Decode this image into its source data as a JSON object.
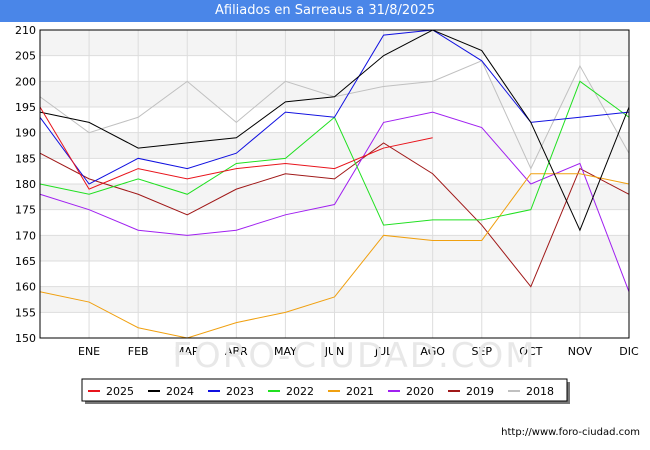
{
  "page": {
    "title": "Afiliados en Sarreaus a 31/8/2025",
    "footer": "http://www.foro-ciudad.com",
    "watermark": "FORO-CIUDAD.COM"
  },
  "chart_data": {
    "type": "line",
    "title": "Afiliados en Sarreaus a 31/8/2025",
    "xlabel": "",
    "ylabel": "",
    "categories": [
      "",
      "ENE",
      "FEB",
      "MAR",
      "ABR",
      "MAY",
      "JUN",
      "JUL",
      "AGO",
      "SEP",
      "OCT",
      "NOV",
      "DIC"
    ],
    "ylim": [
      150,
      210
    ],
    "yticks": [
      150,
      155,
      160,
      165,
      170,
      175,
      180,
      185,
      190,
      195,
      200,
      205,
      210
    ],
    "grid": true,
    "legend_position": "bottom",
    "series": [
      {
        "name": "2025",
        "color": "#e8141c",
        "values": [
          195,
          179,
          183,
          181,
          183,
          184,
          183,
          187,
          189,
          null,
          null,
          null,
          null
        ]
      },
      {
        "name": "2024",
        "color": "#000000",
        "values": [
          194,
          192,
          187,
          188,
          189,
          196,
          197,
          205,
          210,
          206,
          192,
          171,
          195
        ]
      },
      {
        "name": "2023",
        "color": "#1010e0",
        "values": [
          193,
          180,
          185,
          183,
          186,
          194,
          193,
          209,
          210,
          204,
          192,
          193,
          194
        ]
      },
      {
        "name": "2022",
        "color": "#20e020",
        "values": [
          180,
          178,
          181,
          178,
          184,
          185,
          193,
          172,
          173,
          173,
          175,
          200,
          193
        ]
      },
      {
        "name": "2021",
        "color": "#f0a010",
        "values": [
          159,
          157,
          152,
          150,
          153,
          155,
          158,
          170,
          169,
          169,
          182,
          182,
          180
        ]
      },
      {
        "name": "2020",
        "color": "#a020f0",
        "values": [
          178,
          175,
          171,
          170,
          171,
          174,
          176,
          192,
          194,
          191,
          180,
          184,
          159
        ]
      },
      {
        "name": "2019",
        "color": "#a01818",
        "values": [
          186,
          181,
          178,
          174,
          179,
          182,
          181,
          188,
          182,
          172,
          160,
          183,
          178
        ]
      },
      {
        "name": "2018",
        "color": "#c0c0c0",
        "values": [
          197,
          190,
          193,
          200,
          192,
          200,
          197,
          199,
          200,
          204,
          183,
          203,
          186
        ]
      }
    ]
  }
}
